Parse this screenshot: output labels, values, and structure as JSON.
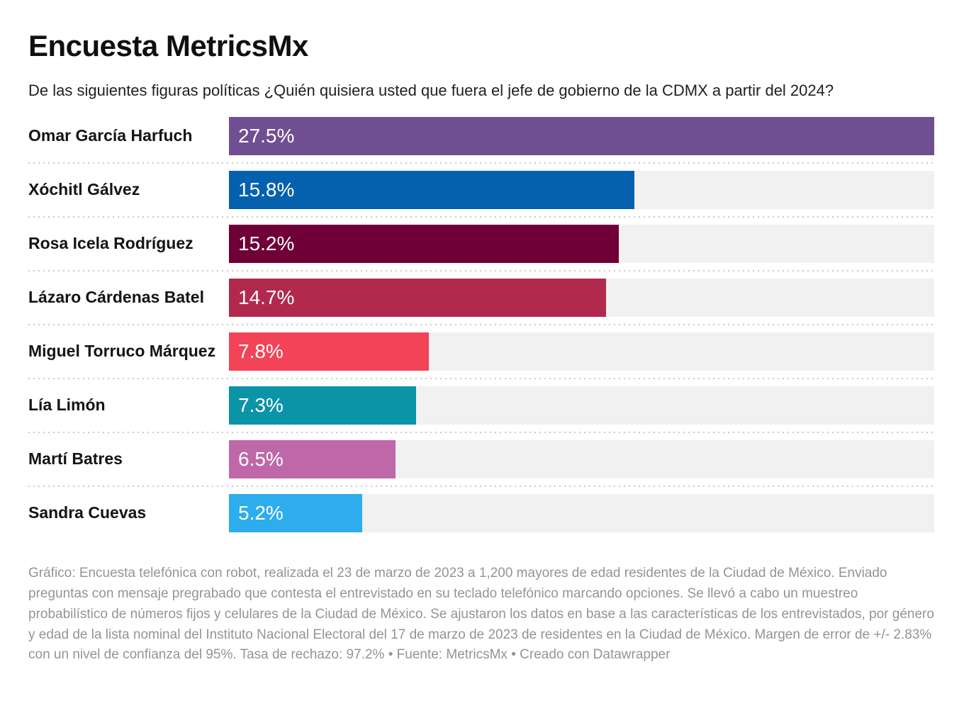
{
  "chart_data": {
    "type": "bar",
    "orientation": "horizontal",
    "title": "Encuesta MetricsMx",
    "subtitle": "De las siguientes figuras políticas ¿Quién quisiera usted que fuera el jefe de gobierno de la CDMX a partir del 2024?",
    "categories": [
      "Omar García Harfuch",
      "Xóchitl Gálvez",
      "Rosa Icela Rodríguez",
      "Lázaro Cárdenas Batel",
      "Miguel Torruco Márquez",
      "Lía Limón",
      "Martí Batres",
      "Sandra Cuevas"
    ],
    "values": [
      27.5,
      15.8,
      15.2,
      14.7,
      7.8,
      7.3,
      6.5,
      5.2
    ],
    "value_labels": [
      "27.5%",
      "15.8%",
      "15.2%",
      "14.7%",
      "7.8%",
      "7.3%",
      "6.5%",
      "5.2%"
    ],
    "colors": [
      "#6F4F91",
      "#0561AE",
      "#6F0037",
      "#B12A4D",
      "#F24358",
      "#0B93A7",
      "#BF68A9",
      "#2DACEE"
    ],
    "xlim": [
      0,
      27.5
    ],
    "grid": false,
    "legend": "none",
    "value_label_position": "inside-start",
    "track_color": "#f1f1f1"
  },
  "footer": {
    "byline_label": "Gráfico:",
    "note": "Encuesta telefónica con robot, realizada el 23 de marzo de 2023 a 1,200 mayores de edad residentes de la Ciudad de México. Enviado preguntas con mensaje pregrabado que contesta el entrevistado en su teclado telefónico marcando opciones. Se llevó a cabo un muestreo probabilístico de números fijos y celulares de la Ciudad de México. Se ajustaron los datos en base a las características de los entrevistados, por género y edad de la lista nominal del Instituto Nacional Electoral del 17 de marzo de 2023 de residentes en la Ciudad de México. Margen de error de +/- 2.83% con un nivel de confianza del 95%. Tasa de rechazo: 97.2%",
    "separator": "•",
    "source_label": "Fuente:",
    "source": "MetricsMx",
    "attribution": "Creado con Datawrapper"
  }
}
